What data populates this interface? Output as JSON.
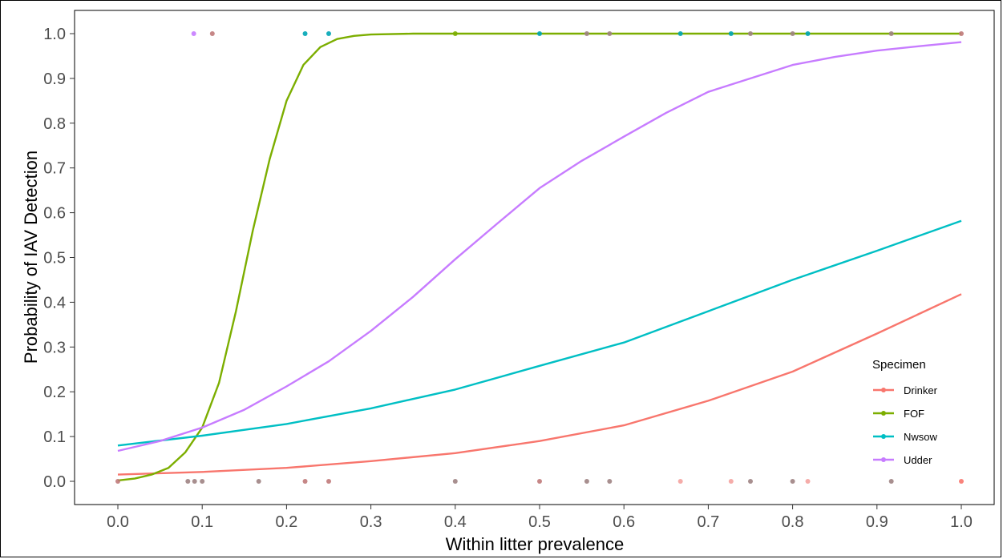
{
  "chart_data": {
    "type": "line",
    "xlabel": "Within litter prevalence",
    "ylabel": "Probability of IAV Detection",
    "xlim": [
      0,
      1
    ],
    "ylim": [
      0,
      1
    ],
    "x_ticks": [
      "0.0",
      "0.1",
      "0.2",
      "0.3",
      "0.4",
      "0.5",
      "0.6",
      "0.7",
      "0.8",
      "0.9",
      "1.0"
    ],
    "y_ticks": [
      "0.0",
      "0.1",
      "0.2",
      "0.3",
      "0.4",
      "0.5",
      "0.6",
      "0.7",
      "0.8",
      "0.9",
      "1.0"
    ],
    "grid": false,
    "legend": {
      "title": "Specimen",
      "position": "right-bottom"
    },
    "series": [
      {
        "name": "Drinker",
        "color": "#F8766D",
        "x": [
          0,
          0.1,
          0.2,
          0.3,
          0.4,
          0.5,
          0.6,
          0.7,
          0.8,
          0.9,
          1.0
        ],
        "y": [
          0.015,
          0.021,
          0.03,
          0.045,
          0.063,
          0.09,
          0.125,
          0.18,
          0.245,
          0.33,
          0.418
        ]
      },
      {
        "name": "FOF",
        "color": "#7CAE00",
        "x": [
          0,
          0.02,
          0.04,
          0.06,
          0.08,
          0.1,
          0.12,
          0.14,
          0.16,
          0.18,
          0.2,
          0.22,
          0.24,
          0.26,
          0.28,
          0.3,
          0.35,
          0.4,
          0.5,
          0.6,
          0.7,
          0.8,
          0.9,
          1.0
        ],
        "y": [
          0.002,
          0.006,
          0.015,
          0.03,
          0.065,
          0.12,
          0.22,
          0.38,
          0.56,
          0.72,
          0.85,
          0.93,
          0.97,
          0.988,
          0.995,
          0.998,
          1.0,
          1.0,
          1.0,
          1.0,
          1.0,
          1.0,
          1.0,
          1.0
        ]
      },
      {
        "name": "Nwsow",
        "color": "#00BFC4",
        "x": [
          0,
          0.1,
          0.2,
          0.3,
          0.4,
          0.5,
          0.6,
          0.7,
          0.8,
          0.9,
          1.0
        ],
        "y": [
          0.08,
          0.102,
          0.128,
          0.163,
          0.205,
          0.258,
          0.31,
          0.38,
          0.45,
          0.515,
          0.582
        ]
      },
      {
        "name": "Udder",
        "color": "#C77CFF",
        "x": [
          0,
          0.05,
          0.1,
          0.15,
          0.2,
          0.25,
          0.3,
          0.35,
          0.4,
          0.45,
          0.5,
          0.55,
          0.6,
          0.65,
          0.7,
          0.75,
          0.8,
          0.85,
          0.9,
          0.95,
          1.0
        ],
        "y": [
          0.068,
          0.09,
          0.12,
          0.16,
          0.212,
          0.268,
          0.336,
          0.412,
          0.496,
          0.576,
          0.655,
          0.716,
          0.77,
          0.823,
          0.87,
          0.9,
          0.93,
          0.948,
          0.962,
          0.972,
          0.981
        ]
      }
    ],
    "points": [
      {
        "x": 0.09,
        "y": 1,
        "color": "#C77CFF"
      },
      {
        "x": 0.112,
        "y": 1,
        "color": "#C07A7A"
      },
      {
        "x": 0.222,
        "y": 1,
        "color": "#00A5B5"
      },
      {
        "x": 0.25,
        "y": 1,
        "color": "#00A5B5"
      },
      {
        "x": 0.4,
        "y": 1,
        "color": "#7CAE00"
      },
      {
        "x": 0.5,
        "y": 1,
        "color": "#00A5B5"
      },
      {
        "x": 0.556,
        "y": 1,
        "color": "#9E8383"
      },
      {
        "x": 0.583,
        "y": 1,
        "color": "#9E8383"
      },
      {
        "x": 0.667,
        "y": 1,
        "color": "#00A5B5"
      },
      {
        "x": 0.727,
        "y": 1,
        "color": "#00A5B5"
      },
      {
        "x": 0.75,
        "y": 1,
        "color": "#9E8383"
      },
      {
        "x": 0.8,
        "y": 1,
        "color": "#9E8383"
      },
      {
        "x": 0.818,
        "y": 1,
        "color": "#00A5B5"
      },
      {
        "x": 0.917,
        "y": 1,
        "color": "#9E8383"
      },
      {
        "x": 1.0,
        "y": 1,
        "color": "#C07A7A"
      },
      {
        "x": 0.0,
        "y": 0,
        "color": "#C07A7A"
      },
      {
        "x": 0.083,
        "y": 0,
        "color": "#9E8383"
      },
      {
        "x": 0.091,
        "y": 0,
        "color": "#9E8383"
      },
      {
        "x": 0.1,
        "y": 0,
        "color": "#9E8383"
      },
      {
        "x": 0.167,
        "y": 0,
        "color": "#9E8383"
      },
      {
        "x": 0.222,
        "y": 0,
        "color": "#C07A7A"
      },
      {
        "x": 0.25,
        "y": 0,
        "color": "#C07A7A"
      },
      {
        "x": 0.4,
        "y": 0,
        "color": "#9E8383"
      },
      {
        "x": 0.5,
        "y": 0,
        "color": "#C07A7A"
      },
      {
        "x": 0.556,
        "y": 0,
        "color": "#9E8383"
      },
      {
        "x": 0.583,
        "y": 0,
        "color": "#9E8383"
      },
      {
        "x": 0.667,
        "y": 0,
        "color": "#F4A3A0"
      },
      {
        "x": 0.727,
        "y": 0,
        "color": "#F4A3A0"
      },
      {
        "x": 0.75,
        "y": 0,
        "color": "#9E8383"
      },
      {
        "x": 0.8,
        "y": 0,
        "color": "#9E8383"
      },
      {
        "x": 0.818,
        "y": 0,
        "color": "#F4A3A0"
      },
      {
        "x": 0.917,
        "y": 0,
        "color": "#9E8383"
      },
      {
        "x": 1.0,
        "y": 0,
        "color": "#F8766D"
      }
    ]
  }
}
